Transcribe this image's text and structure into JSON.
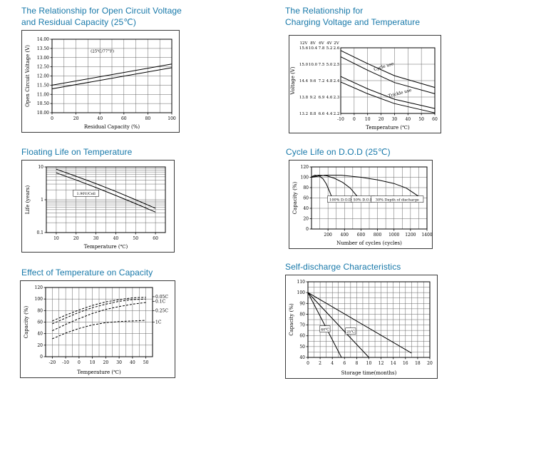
{
  "page": {
    "background": "#ffffff",
    "heading_color": "#1778a9"
  },
  "chart_data": [
    {
      "id": "ocv",
      "type": "line",
      "title": "The Relationship for Open Circuit Voltage and Residual Capacity (25℃)",
      "title_lines": [
        "The Relationship for Open Circuit Voltage",
        "and Residual Capacity (25℃)"
      ],
      "xlabel": "Residual Capacity (%)",
      "ylabel": "Open Circuit Voltage (V)",
      "xlim": [
        0,
        100
      ],
      "ylim": [
        10,
        14
      ],
      "xticks": [
        0,
        20,
        40,
        60,
        80,
        100
      ],
      "yticks": [
        [
          10,
          "10.00"
        ],
        [
          10.5,
          "10.50"
        ],
        [
          11,
          "11.00"
        ],
        [
          11.5,
          "11.50"
        ],
        [
          12,
          "12.00"
        ],
        [
          12.5,
          "12.50"
        ],
        [
          13,
          "13.00"
        ],
        [
          13.5,
          "13.50"
        ],
        [
          14,
          "14.00"
        ]
      ],
      "xgrid": [
        10,
        20,
        30,
        40,
        50,
        60,
        70,
        80,
        90
      ],
      "ygrid": [
        10.5,
        11,
        11.5,
        12,
        12.5,
        13,
        13.5
      ],
      "series": [
        {
          "name": "ocv-upper",
          "points": [
            [
              0,
              11.5
            ],
            [
              100,
              12.65
            ]
          ]
        },
        {
          "name": "ocv-lower",
          "points": [
            [
              0,
              11.3
            ],
            [
              100,
              12.45
            ]
          ]
        }
      ],
      "annotations": [
        {
          "text": "(25℃/77°F)",
          "x": 42,
          "y": 13.35,
          "size": 5.5
        }
      ]
    },
    {
      "id": "cvt",
      "type": "line",
      "title": "The Relationship for Charging Voltage and Temperature",
      "title_lines": [
        "The Relationship for",
        "Charging Voltage and Temperature"
      ],
      "xlabel": "Temperature (℃)",
      "ylabel": "Voltage (V)",
      "xlim": [
        -10,
        60
      ],
      "ylim": [
        13.2,
        15.6
      ],
      "xticks": [
        -10,
        0,
        10,
        20,
        30,
        40,
        50,
        60
      ],
      "yticks": [],
      "xgrid": [
        0,
        10,
        20,
        30,
        40,
        50
      ],
      "ygrid": [
        13.8,
        14.4,
        15.0
      ],
      "scale_headers": [
        "12V",
        "8V",
        "6V",
        "4V",
        "2V"
      ],
      "scale_rows": [
        15.6,
        15.0,
        14.4,
        13.8,
        13.2
      ],
      "scale_columns": [
        [
          "15.6",
          "15.0",
          "14.4",
          "13.8",
          "13.2"
        ],
        [
          "10.4",
          "10.0",
          "9.6",
          "9.2",
          "8.8"
        ],
        [
          "7.8",
          "7.5",
          "7.2",
          "6.9",
          "6.6"
        ],
        [
          "5.2",
          "5.0",
          "4.8",
          "4.6",
          "4.4"
        ],
        [
          "2.6",
          "2.5",
          "2.4",
          "2.3",
          "2.2"
        ]
      ],
      "series": [
        {
          "name": "cycle-use-upper",
          "points": [
            [
              -10,
              15.5
            ],
            [
              10,
              15.02
            ],
            [
              30,
              14.58
            ],
            [
              60,
              14.15
            ]
          ]
        },
        {
          "name": "cycle-use-lower",
          "points": [
            [
              -10,
              15.27
            ],
            [
              10,
              14.78
            ],
            [
              30,
              14.33
            ],
            [
              60,
              13.92
            ]
          ]
        },
        {
          "name": "trickle-use-upper",
          "points": [
            [
              -10,
              14.55
            ],
            [
              10,
              14.1
            ],
            [
              30,
              13.72
            ],
            [
              60,
              13.38
            ]
          ]
        },
        {
          "name": "trickle-use-lower",
          "points": [
            [
              -10,
              14.35
            ],
            [
              10,
              13.92
            ],
            [
              30,
              13.56
            ],
            [
              60,
              13.22
            ]
          ]
        }
      ],
      "annotations": [
        {
          "text": "Cycle use",
          "x": 22,
          "y": 14.92,
          "rotate": -17,
          "size": 6
        },
        {
          "text": "Trickle use",
          "x": 34,
          "y": 13.95,
          "rotate": -15,
          "size": 6
        }
      ]
    },
    {
      "id": "float",
      "type": "line",
      "title": "Floating Life on Temperature",
      "title_lines": [
        "Floating Life on Temperature"
      ],
      "xlabel": "Temperature (℃)",
      "ylabel": "Life (years)",
      "xlim": [
        5,
        65
      ],
      "ylim": [
        0.1,
        10
      ],
      "ylog": true,
      "xticks": [
        10,
        20,
        30,
        40,
        50,
        60
      ],
      "yticks": [
        [
          0.1,
          "0.1"
        ],
        [
          1,
          "1"
        ],
        [
          10,
          "10"
        ]
      ],
      "xgrid": [
        10,
        15,
        20,
        25,
        30,
        35,
        40,
        45,
        50,
        55,
        60
      ],
      "ygrid": [
        0.2,
        0.3,
        0.4,
        0.5,
        0.6,
        0.7,
        0.8,
        0.9,
        1,
        2,
        3,
        4,
        5,
        6,
        7,
        8,
        9
      ],
      "series": [
        {
          "name": "float-life-upper",
          "points": [
            [
              10,
              8.5
            ],
            [
              20,
              5.2
            ],
            [
              30,
              3.1
            ],
            [
              40,
              1.8
            ],
            [
              50,
              1.0
            ],
            [
              60,
              0.55
            ]
          ]
        },
        {
          "name": "float-life-lower",
          "points": [
            [
              10,
              6.6
            ],
            [
              20,
              4.0
            ],
            [
              30,
              2.35
            ],
            [
              40,
              1.35
            ],
            [
              50,
              0.76
            ],
            [
              60,
              0.42
            ]
          ]
        }
      ],
      "annotations": [
        {
          "text": "1.90V/Cell",
          "x": 25,
          "y": 1.55,
          "size": 5,
          "boxed": true
        }
      ]
    },
    {
      "id": "cycle",
      "type": "line",
      "title": "Cycle Life on D.O.D (25℃)",
      "title_lines": [
        "Cycle Life on D.O.D (25℃)"
      ],
      "xlabel": "Number of cycles (cycles)",
      "ylabel": "Capacity (%)",
      "xlim": [
        0,
        1400
      ],
      "ylim": [
        0,
        120
      ],
      "xticks": [
        200,
        400,
        600,
        800,
        1000,
        1200,
        1400
      ],
      "yticks": [
        0,
        20,
        40,
        60,
        80,
        100,
        120
      ],
      "xgrid": [
        100,
        200,
        300,
        400,
        500,
        600,
        700,
        800,
        900,
        1000,
        1100,
        1200,
        1300
      ],
      "ygrid": [
        20,
        40,
        60,
        80,
        100
      ],
      "series": [
        {
          "name": "dod-100",
          "points": [
            [
              0,
              101
            ],
            [
              40,
              104
            ],
            [
              90,
              103
            ],
            [
              140,
              97
            ],
            [
              180,
              87
            ],
            [
              220,
              72
            ],
            [
              250,
              60
            ]
          ]
        },
        {
          "name": "dod-50",
          "points": [
            [
              0,
              100
            ],
            [
              80,
              104
            ],
            [
              180,
              103
            ],
            [
              280,
              98
            ],
            [
              380,
              90
            ],
            [
              470,
              79
            ],
            [
              560,
              62
            ]
          ]
        },
        {
          "name": "dod-30",
          "points": [
            [
              0,
              100
            ],
            [
              160,
              104
            ],
            [
              360,
              104
            ],
            [
              600,
              100
            ],
            [
              800,
              95
            ],
            [
              1000,
              88
            ],
            [
              1150,
              79
            ],
            [
              1300,
              63
            ]
          ]
        }
      ],
      "annotations": [
        {
          "text": "100% D.O.D",
          "x": 350,
          "y": 57,
          "size": 5,
          "boxed": true
        },
        {
          "text": "50% D.O.D",
          "x": 625,
          "y": 57,
          "size": 5,
          "boxed": true
        },
        {
          "text": "30% Depth of discharge",
          "x": 1040,
          "y": 57,
          "size": 5,
          "boxed": true
        }
      ]
    },
    {
      "id": "tempcap",
      "type": "line",
      "title": "Effect of Temperature on Capacity",
      "title_lines": [
        "Effect of Temperature on Capacity"
      ],
      "xlabel": "Temperature (℃)",
      "ylabel": "Capacity (%)",
      "xlim": [
        -25,
        55
      ],
      "ylim": [
        0,
        120
      ],
      "xticks": [
        -20,
        -10,
        0,
        10,
        20,
        30,
        40,
        50
      ],
      "yticks": [
        0,
        20,
        40,
        60,
        80,
        100,
        120
      ],
      "xgrid": [
        -20,
        -15,
        -10,
        -5,
        0,
        5,
        10,
        15,
        20,
        25,
        30,
        35,
        40,
        45,
        50
      ],
      "ygrid": [
        20,
        40,
        60,
        80,
        100
      ],
      "series": [
        {
          "name": "0.05C",
          "dash": true,
          "points": [
            [
              -20,
              62
            ],
            [
              -10,
              72
            ],
            [
              0,
              81
            ],
            [
              10,
              89
            ],
            [
              20,
              95
            ],
            [
              30,
              99
            ],
            [
              40,
              102
            ],
            [
              50,
              103
            ]
          ]
        },
        {
          "name": "0.1C",
          "dash": true,
          "points": [
            [
              -20,
              57
            ],
            [
              -10,
              67
            ],
            [
              0,
              77
            ],
            [
              10,
              85
            ],
            [
              20,
              91
            ],
            [
              30,
              96
            ],
            [
              40,
              99
            ],
            [
              50,
              100
            ]
          ]
        },
        {
          "name": "0.25C",
          "dash": true,
          "points": [
            [
              -20,
              45
            ],
            [
              -10,
              56
            ],
            [
              0,
              66
            ],
            [
              10,
              75
            ],
            [
              20,
              82
            ],
            [
              30,
              87
            ],
            [
              40,
              91
            ],
            [
              50,
              94
            ]
          ]
        },
        {
          "name": "1C",
          "dash": true,
          "points": [
            [
              -20,
              31
            ],
            [
              -10,
              41
            ],
            [
              0,
              49
            ],
            [
              10,
              55
            ],
            [
              20,
              59
            ],
            [
              30,
              61
            ],
            [
              40,
              62
            ],
            [
              50,
              63
            ]
          ]
        }
      ],
      "legend_labels": [
        {
          "text": "0.05C",
          "y": 104
        },
        {
          "text": "0.1C",
          "y": 96
        },
        {
          "text": "0.25C",
          "y": 80
        },
        {
          "text": "1C",
          "y": 60
        }
      ]
    },
    {
      "id": "selfd",
      "type": "line",
      "title": "Self-discharge Characteristics",
      "title_lines": [
        "Self-discharge Characteristics"
      ],
      "xlabel": "Storage time(months)",
      "ylabel": "Capacity (%)",
      "xlim": [
        0,
        20
      ],
      "ylim": [
        40,
        110
      ],
      "xticks": [
        0,
        2,
        4,
        6,
        8,
        10,
        12,
        14,
        16,
        18,
        20
      ],
      "yticks": [
        40,
        50,
        60,
        70,
        80,
        90,
        100,
        110
      ],
      "xgrid": [
        1,
        2,
        3,
        4,
        5,
        6,
        7,
        8,
        9,
        10,
        11,
        12,
        13,
        14,
        15,
        16,
        17,
        18,
        19
      ],
      "ygrid": [
        45,
        50,
        55,
        60,
        65,
        70,
        75,
        80,
        85,
        90,
        95,
        100,
        105
      ],
      "series": [
        {
          "name": "storage-high-temp",
          "points": [
            [
              0,
              100
            ],
            [
              5.5,
              40
            ]
          ]
        },
        {
          "name": "storage-mid-temp",
          "points": [
            [
              0,
              100
            ],
            [
              10,
              40
            ]
          ]
        },
        {
          "name": "storage-low-temp",
          "points": [
            [
              0,
              100
            ],
            [
              17,
              44
            ]
          ]
        }
      ],
      "annotations": [
        {
          "text": "40℃",
          "x": 2.8,
          "y": 66,
          "size": 5,
          "boxed": true
        },
        {
          "text": "25℃",
          "x": 7.0,
          "y": 64,
          "size": 5,
          "boxed": true
        }
      ]
    }
  ]
}
